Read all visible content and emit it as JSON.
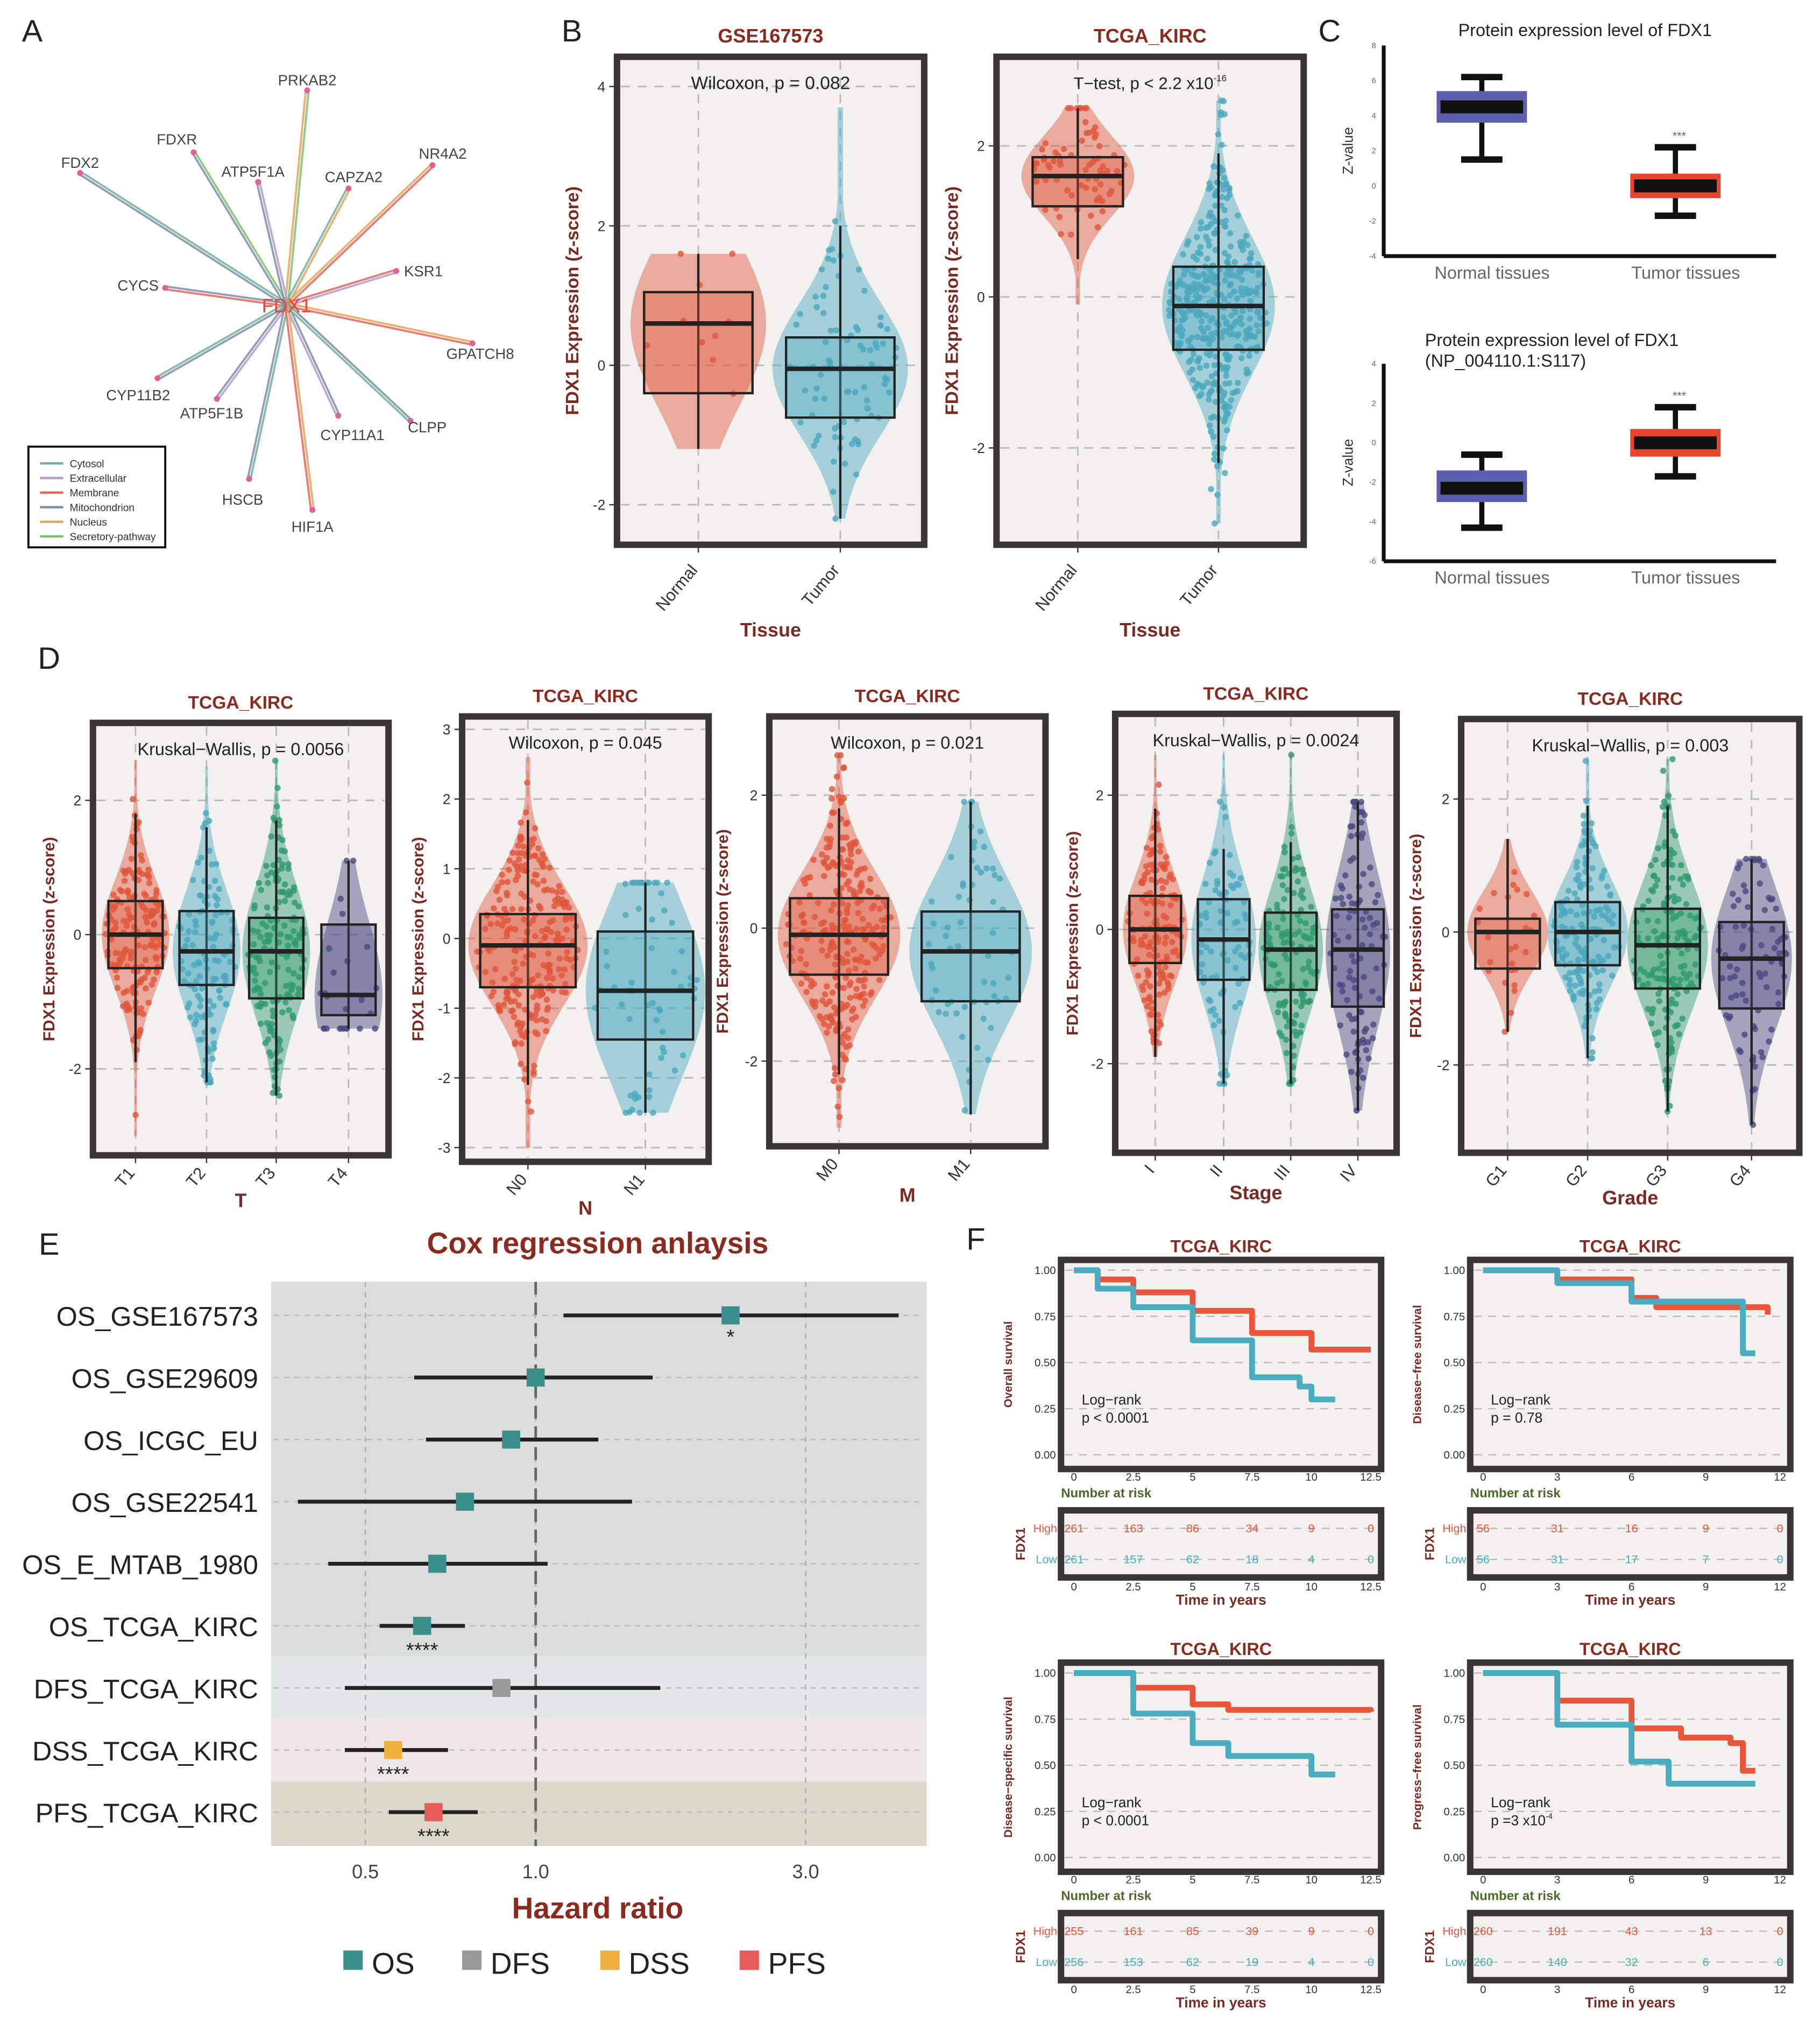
{
  "panel_labels": [
    "A",
    "B",
    "C",
    "D",
    "E",
    "F"
  ],
  "panel_a": {
    "center": "FDX1",
    "genes": [
      {
        "name": "PRKAB2",
        "compartments": [
          "Nucleus",
          "Secretory-pathway"
        ]
      },
      {
        "name": "FDXR",
        "compartments": [
          "Mitochondrion",
          "Secretory-pathway"
        ]
      },
      {
        "name": "FDX2",
        "compartments": [
          "Mitochondrion",
          "Cytosol"
        ]
      },
      {
        "name": "ATP5F1A",
        "compartments": [
          "Mitochondrion",
          "Extracellular"
        ]
      },
      {
        "name": "CAPZA2",
        "compartments": [
          "Cytosol",
          "Nucleus"
        ]
      },
      {
        "name": "NR4A2",
        "compartments": [
          "Nucleus",
          "Membrane"
        ]
      },
      {
        "name": "KSR1",
        "compartments": [
          "Membrane",
          "Extracellular"
        ]
      },
      {
        "name": "CYCS",
        "compartments": [
          "Membrane",
          "Mitochondrion"
        ]
      },
      {
        "name": "GPATCH8",
        "compartments": [
          "Nucleus",
          "Membrane"
        ]
      },
      {
        "name": "CYP11B2",
        "compartments": [
          "Mitochondrion",
          "Cytosol"
        ]
      },
      {
        "name": "ATP5F1B",
        "compartments": [
          "Extracellular",
          "Mitochondrion"
        ]
      },
      {
        "name": "CYP11A1",
        "compartments": [
          "Mitochondrion",
          "Extracellular"
        ]
      },
      {
        "name": "CLPP",
        "compartments": [
          "Mitochondrion",
          "Cytosol"
        ]
      },
      {
        "name": "HSCB",
        "compartments": [
          "Cytosol",
          "Mitochondrion"
        ]
      },
      {
        "name": "HIF1A",
        "compartments": [
          "Nucleus",
          "Membrane"
        ]
      }
    ],
    "legend": [
      {
        "label": "Cytosol",
        "color": "#6fb39a"
      },
      {
        "label": "Extracellular",
        "color": "#b49ccc"
      },
      {
        "label": "Membrane",
        "color": "#e8645a"
      },
      {
        "label": "Mitochondrion",
        "color": "#7b8fb0"
      },
      {
        "label": "Nucleus",
        "color": "#e9a35a"
      },
      {
        "label": "Secretory-pathway",
        "color": "#7cc46a"
      }
    ]
  },
  "colors": {
    "high": "#e8553a",
    "low": "#4aacbe",
    "title": "#8b2a1e",
    "frame": "#3a3434",
    "panel_bg": "#f2f1ef"
  },
  "chart_data": [
    {
      "id": "B1",
      "type": "box",
      "title": "GSE167573",
      "annotation": "Wilcoxon, p = 0.082",
      "annotation_sup": "",
      "ylabel": "FDX1 Expression (z-score)",
      "xlabel": "Tissue",
      "categories": [
        "Normal",
        "Tumor"
      ],
      "yticks": [
        -2,
        0,
        2,
        4
      ],
      "colors": [
        "#e0553a",
        "#4aa8be"
      ],
      "boxes": [
        {
          "q1": -0.4,
          "median": 0.6,
          "q3": 1.05,
          "lo": -1.2,
          "hi": 1.6
        },
        {
          "q1": -0.75,
          "median": -0.05,
          "q3": 0.4,
          "lo": -2.2,
          "hi": 2.0,
          "max": 3.7
        }
      ]
    },
    {
      "id": "B2",
      "type": "box",
      "title": "TCGA_KIRC",
      "annotation": "T−test, p < 2.2 x10",
      "annotation_sup": "-16",
      "ylabel": "FDX1 Expression (z-score)",
      "xlabel": "Tissue",
      "categories": [
        "Normal",
        "Tumor"
      ],
      "yticks": [
        -2,
        0,
        2
      ],
      "colors": [
        "#e0553a",
        "#4aa8be"
      ],
      "boxes": [
        {
          "q1": 1.2,
          "median": 1.6,
          "q3": 1.85,
          "lo": 0.5,
          "hi": 2.5,
          "min": -0.1
        },
        {
          "q1": -0.7,
          "median": -0.12,
          "q3": 0.4,
          "lo": -2.2,
          "hi": 1.9,
          "min": -3.0,
          "max": 2.6
        }
      ]
    },
    {
      "id": "C1",
      "type": "box",
      "title": "Protein expression level of FDX1",
      "title2": "",
      "ylabel": "Z-value",
      "categories": [
        "Normal tissues",
        "Tumor tissues"
      ],
      "yticks": [
        -4,
        -2,
        0,
        2,
        4,
        6,
        8
      ],
      "colors": [
        "#5b5fb0",
        "#e8442a"
      ],
      "significance": "***",
      "boxes": [
        {
          "q1": 3.6,
          "median": 4.5,
          "q3": 5.4,
          "lo": 1.5,
          "hi": 6.2
        },
        {
          "q1": -0.7,
          "median": 0,
          "q3": 0.7,
          "lo": -1.7,
          "hi": 2.2
        }
      ]
    },
    {
      "id": "C2",
      "type": "box",
      "title": "Protein expression level of FDX1",
      "title2": "(NP_004110.1:S117)",
      "ylabel": "Z-value",
      "categories": [
        "Normal tissues",
        "Tumor tissues"
      ],
      "yticks": [
        -6,
        -4,
        -2,
        0,
        2,
        4
      ],
      "colors": [
        "#5b5fb0",
        "#e8442a"
      ],
      "significance": "***",
      "boxes": [
        {
          "q1": -3.0,
          "median": -2.3,
          "q3": -1.4,
          "lo": -4.3,
          "hi": -0.6
        },
        {
          "q1": -0.7,
          "median": 0,
          "q3": 0.7,
          "lo": -1.7,
          "hi": 1.8
        }
      ]
    },
    {
      "id": "D1",
      "type": "box",
      "title": "TCGA_KIRC",
      "annotation": "Kruskal−Wallis, p = 0.0056",
      "annotation_sup": "",
      "ylabel": "FDX1 Expression (z-score)",
      "xlabel": "T",
      "categories": [
        "T1",
        "T2",
        "T3",
        "T4"
      ],
      "yticks": [
        -2,
        0,
        2
      ],
      "colors": [
        "#e0553a",
        "#4aa8be",
        "#2e9a6e",
        "#4a4880"
      ],
      "boxes": [
        {
          "q1": -0.5,
          "median": 0,
          "q3": 0.5,
          "lo": -1.9,
          "hi": 1.8,
          "min": -3.0,
          "max": 2.6
        },
        {
          "q1": -0.75,
          "median": -0.25,
          "q3": 0.35,
          "lo": -2.2,
          "hi": 1.6,
          "max": 2.5
        },
        {
          "q1": -0.95,
          "median": -0.25,
          "q3": 0.25,
          "lo": -2.4,
          "hi": 1.7,
          "max": 2.6
        },
        {
          "q1": -1.2,
          "median": -0.9,
          "q3": 0.15,
          "lo": -1.4,
          "hi": 1.1
        }
      ]
    },
    {
      "id": "D2",
      "type": "box",
      "title": "TCGA_KIRC",
      "annotation": "Wilcoxon, p = 0.045",
      "annotation_sup": "",
      "ylabel": "FDX1 Expression (z-score)",
      "xlabel": "N",
      "categories": [
        "N0",
        "N1"
      ],
      "yticks": [
        -3,
        -2,
        -1,
        0,
        1,
        2,
        3
      ],
      "colors": [
        "#e0553a",
        "#4aa8be"
      ],
      "boxes": [
        {
          "q1": -0.7,
          "median": -0.1,
          "q3": 0.35,
          "lo": -2.1,
          "hi": 1.7,
          "min": -3.0,
          "max": 2.6
        },
        {
          "q1": -1.45,
          "median": -0.75,
          "q3": 0.1,
          "lo": -2.5,
          "hi": 0.8
        }
      ]
    },
    {
      "id": "D3",
      "type": "box",
      "title": "TCGA_KIRC",
      "annotation": "Wilcoxon, p = 0.021",
      "annotation_sup": "",
      "ylabel": "FDX1 Expression (z-score)",
      "xlabel": "M",
      "categories": [
        "M0",
        "M1"
      ],
      "yticks": [
        -2,
        0,
        2
      ],
      "colors": [
        "#e0553a",
        "#4aa8be"
      ],
      "boxes": [
        {
          "q1": -0.7,
          "median": -0.1,
          "q3": 0.45,
          "lo": -2.2,
          "hi": 1.8,
          "min": -3.0,
          "max": 2.6
        },
        {
          "q1": -1.1,
          "median": -0.35,
          "q3": 0.25,
          "lo": -2.8,
          "hi": 1.9
        }
      ]
    },
    {
      "id": "D4",
      "type": "box",
      "title": "TCGA_KIRC",
      "annotation": "Kruskal−Wallis, p = 0.0024",
      "annotation_sup": "",
      "ylabel": "FDX1 Expression (z-score)",
      "xlabel": "Stage",
      "categories": [
        "I",
        "II",
        "III",
        "IV"
      ],
      "yticks": [
        -2,
        0,
        2
      ],
      "colors": [
        "#e0553a",
        "#4aa8be",
        "#2e9a6e",
        "#4a4880"
      ],
      "boxes": [
        {
          "q1": -0.5,
          "median": 0,
          "q3": 0.5,
          "lo": -1.9,
          "hi": 1.8,
          "max": 2.6
        },
        {
          "q1": -0.75,
          "median": -0.15,
          "q3": 0.45,
          "lo": -2.3,
          "hi": 1.2,
          "max": 2.6
        },
        {
          "q1": -0.9,
          "median": -0.3,
          "q3": 0.25,
          "lo": -2.3,
          "hi": 1.3,
          "max": 2.6
        },
        {
          "q1": -1.15,
          "median": -0.3,
          "q3": 0.3,
          "lo": -2.7,
          "hi": 1.9
        }
      ]
    },
    {
      "id": "D5",
      "type": "box",
      "title": "TCGA_KIRC",
      "annotation": "Kruskal−Wallis, p = 0.003",
      "annotation_sup": "",
      "ylabel": "FDX1 Expression (z-score)",
      "xlabel": "Grade",
      "categories": [
        "G1",
        "G2",
        "G3",
        "G4"
      ],
      "yticks": [
        -2,
        0,
        2
      ],
      "colors": [
        "#e0553a",
        "#4aa8be",
        "#2e9a6e",
        "#4a4880"
      ],
      "boxes": [
        {
          "q1": -0.55,
          "median": 0,
          "q3": 0.2,
          "lo": -1.5,
          "hi": 1.4
        },
        {
          "q1": -0.5,
          "median": 0,
          "q3": 0.45,
          "lo": -1.9,
          "hi": 1.9,
          "max": 2.6
        },
        {
          "q1": -0.85,
          "median": -0.2,
          "q3": 0.35,
          "lo": -2.7,
          "hi": 1.9,
          "max": 2.6
        },
        {
          "q1": -1.15,
          "median": -0.4,
          "q3": 0.15,
          "lo": -2.9,
          "hi": 1.1
        }
      ]
    },
    {
      "id": "E",
      "type": "forest",
      "title": "Cox regression anlaysis",
      "xlabel": "Hazard ratio",
      "xscale": "log",
      "xticks": [
        0.5,
        1.0,
        3.0
      ],
      "xtick_labels": [
        "0.5",
        "1.0",
        "3.0"
      ],
      "reference": 1.0,
      "rows": [
        {
          "label": "OS_GSE167573",
          "group": "OS",
          "hr": 2.21,
          "lo": 1.12,
          "hi": 4.38,
          "sig": "*"
        },
        {
          "label": "OS_GSE29609",
          "group": "OS",
          "hr": 1.0,
          "lo": 0.61,
          "hi": 1.61,
          "sig": ""
        },
        {
          "label": "OS_ICGC_EU",
          "group": "OS",
          "hr": 0.905,
          "lo": 0.64,
          "hi": 1.29,
          "sig": ""
        },
        {
          "label": "OS_GSE22541",
          "group": "OS",
          "hr": 0.75,
          "lo": 0.38,
          "hi": 1.48,
          "sig": ""
        },
        {
          "label": "OS_E_MTAB_1980",
          "group": "OS",
          "hr": 0.67,
          "lo": 0.43,
          "hi": 1.05,
          "sig": ""
        },
        {
          "label": "OS_TCGA_KIRC",
          "group": "OS",
          "hr": 0.63,
          "lo": 0.53,
          "hi": 0.75,
          "sig": "****"
        },
        {
          "label": "DFS_TCGA_KIRC",
          "group": "DFS",
          "hr": 0.87,
          "lo": 0.46,
          "hi": 1.66,
          "sig": ""
        },
        {
          "label": "DSS_TCGA_KIRC",
          "group": "DSS",
          "hr": 0.56,
          "lo": 0.46,
          "hi": 0.7,
          "sig": "****"
        },
        {
          "label": "PFS_TCGA_KIRC",
          "group": "PFS",
          "hr": 0.66,
          "lo": 0.55,
          "hi": 0.79,
          "sig": "****"
        }
      ],
      "legend": [
        {
          "label": "OS",
          "color": "#3a8f8a"
        },
        {
          "label": "DFS",
          "color": "#9a9a9a"
        },
        {
          "label": "DSS",
          "color": "#f0b040"
        },
        {
          "label": "PFS",
          "color": "#e85a5a"
        }
      ],
      "band_colors": {
        "OS": "#dcdcdc",
        "DFS": "#e4e8e8",
        "DSS": "#efe6e8",
        "PFS": "#dcd8cc"
      }
    },
    {
      "id": "F1",
      "type": "line",
      "title": "TCGA_KIRC",
      "ylabel": "Overall survival",
      "xlabel": "Time in years",
      "xticks": [
        0,
        2.5,
        5,
        7.5,
        10,
        12.5
      ],
      "xmax": 12.5,
      "yticks": [
        "0.00",
        "0.25",
        "0.50",
        "0.75",
        "1.00"
      ],
      "stat_label": "Log−rank",
      "p": "p < 0.0001",
      "p_sup": "",
      "risk_title": "Number at risk",
      "strata_title": "FDX1",
      "strata": [
        "High",
        "Low"
      ],
      "risk_high": [
        261,
        163,
        86,
        34,
        9,
        0
      ],
      "risk_low": [
        261,
        157,
        62,
        18,
        4,
        0
      ],
      "high": [
        [
          0,
          1
        ],
        [
          1,
          0.95
        ],
        [
          2.5,
          0.88
        ],
        [
          5,
          0.78
        ],
        [
          7.5,
          0.66
        ],
        [
          10,
          0.6
        ],
        [
          10,
          0.57
        ],
        [
          12.5,
          0.57
        ]
      ],
      "low": [
        [
          0,
          1
        ],
        [
          1,
          0.9
        ],
        [
          2.5,
          0.8
        ],
        [
          5,
          0.62
        ],
        [
          7.5,
          0.42
        ],
        [
          9.5,
          0.37
        ],
        [
          10,
          0.3
        ],
        [
          11,
          0.3
        ]
      ]
    },
    {
      "id": "F2",
      "type": "line",
      "title": "TCGA_KIRC",
      "ylabel": "Disease−free survival",
      "xlabel": "Time in years",
      "xticks": [
        0,
        3,
        6,
        9,
        12
      ],
      "xmax": 12,
      "yticks": [
        "0.00",
        "0.25",
        "0.50",
        "0.75",
        "1.00"
      ],
      "stat_label": "Log−rank",
      "p": "p = 0.78",
      "p_sup": "",
      "risk_title": "Number at risk",
      "strata_title": "FDX1",
      "strata": [
        "High",
        "Low"
      ],
      "risk_high": [
        56,
        31,
        16,
        9,
        0
      ],
      "risk_low": [
        56,
        31,
        17,
        7,
        0
      ],
      "high": [
        [
          0,
          1
        ],
        [
          3,
          0.95
        ],
        [
          6,
          0.85
        ],
        [
          7,
          0.8
        ],
        [
          11.5,
          0.8
        ],
        [
          11.5,
          0.76
        ]
      ],
      "low": [
        [
          0,
          1
        ],
        [
          3,
          0.93
        ],
        [
          6,
          0.83
        ],
        [
          10.5,
          0.8
        ],
        [
          10.5,
          0.55
        ],
        [
          11,
          0.55
        ]
      ]
    },
    {
      "id": "F3",
      "type": "line",
      "title": "TCGA_KIRC",
      "ylabel": "Disease−specific survival",
      "xlabel": "Time in years",
      "xticks": [
        0,
        2.5,
        5,
        7.5,
        10,
        12.5
      ],
      "xmax": 12.5,
      "yticks": [
        "0.00",
        "0.25",
        "0.50",
        "0.75",
        "1.00"
      ],
      "stat_label": "Log−rank",
      "p": "p < 0.0001",
      "p_sup": "",
      "risk_title": "Number at risk",
      "strata_title": "FDX1",
      "strata": [
        "High",
        "Low"
      ],
      "risk_high": [
        255,
        161,
        85,
        39,
        9,
        0
      ],
      "risk_low": [
        256,
        153,
        62,
        19,
        4,
        0
      ],
      "high": [
        [
          0,
          1
        ],
        [
          2.5,
          0.92
        ],
        [
          5,
          0.83
        ],
        [
          6.5,
          0.8
        ],
        [
          12.5,
          0.79
        ]
      ],
      "low": [
        [
          0,
          1
        ],
        [
          2.5,
          0.78
        ],
        [
          5,
          0.62
        ],
        [
          6.5,
          0.55
        ],
        [
          10,
          0.55
        ],
        [
          10,
          0.45
        ],
        [
          11,
          0.45
        ]
      ]
    },
    {
      "id": "F4",
      "type": "line",
      "title": "TCGA_KIRC",
      "ylabel": "Progress−free survival",
      "xlabel": "Time in years",
      "xticks": [
        0,
        3,
        6,
        9,
        12
      ],
      "xmax": 12,
      "yticks": [
        "0.00",
        "0.25",
        "0.50",
        "0.75",
        "1.00"
      ],
      "stat_label": "Log−rank",
      "p": "p =3 x10",
      "p_sup": "-4",
      "risk_title": "Number at risk",
      "strata_title": "FDX1",
      "strata": [
        "High",
        "Low"
      ],
      "risk_high": [
        260,
        191,
        43,
        13,
        0
      ],
      "risk_low": [
        260,
        140,
        32,
        6,
        0
      ],
      "high": [
        [
          0,
          1
        ],
        [
          3,
          0.85
        ],
        [
          6,
          0.7
        ],
        [
          8,
          0.65
        ],
        [
          10,
          0.62
        ],
        [
          10.5,
          0.47
        ],
        [
          11,
          0.47
        ]
      ],
      "low": [
        [
          0,
          1
        ],
        [
          3,
          0.72
        ],
        [
          6,
          0.52
        ],
        [
          7.5,
          0.4
        ],
        [
          11,
          0.4
        ]
      ]
    }
  ]
}
